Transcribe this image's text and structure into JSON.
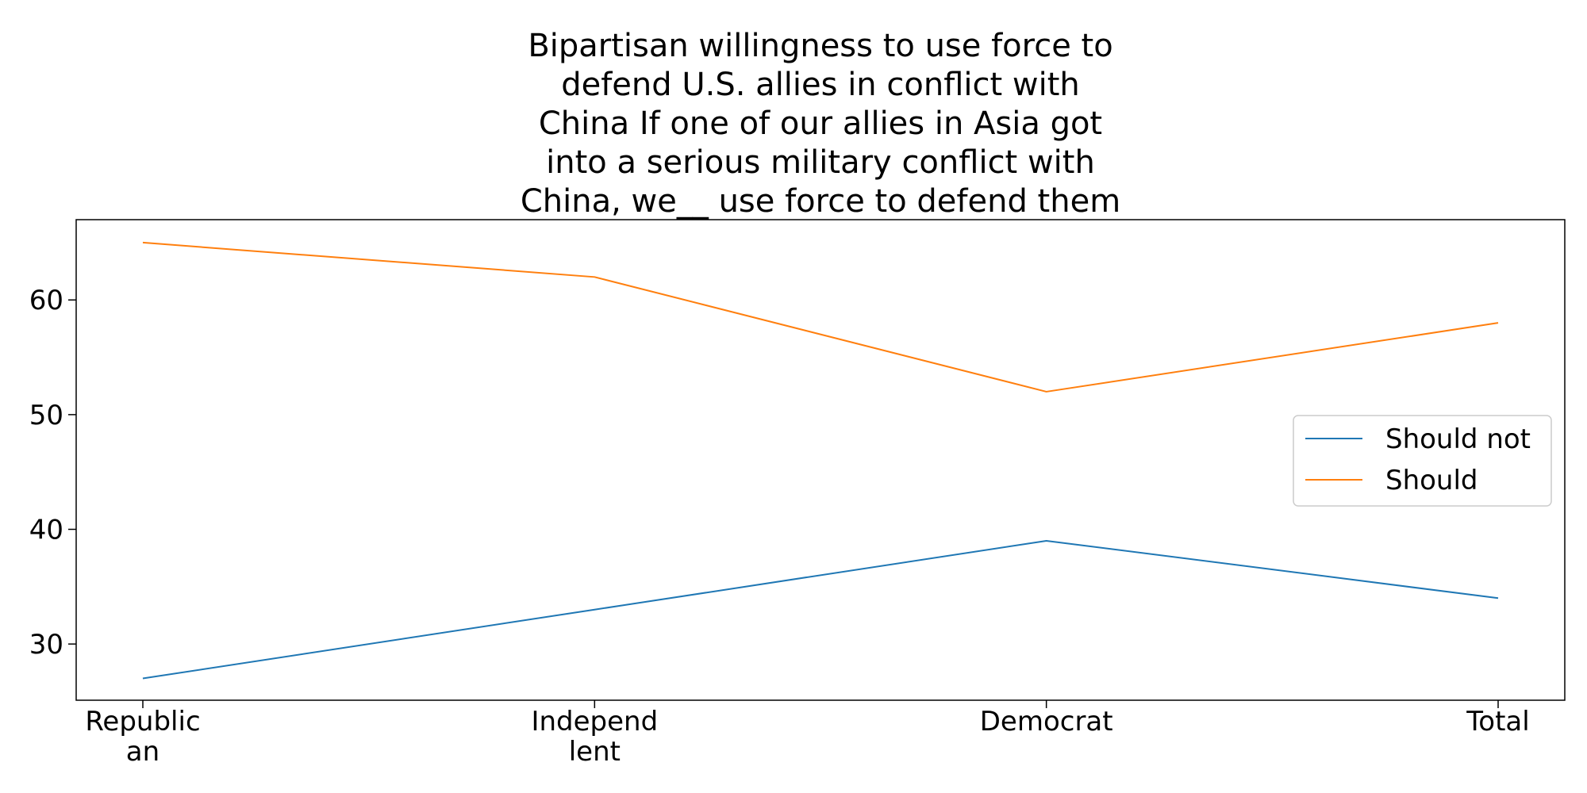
{
  "chart_data": {
    "type": "line",
    "title_lines": [
      "Bipartisan willingness to use force to",
      "defend U.S. allies in conflict with",
      "China If one of our allies in Asia got",
      "into a serious military conflict with",
      "China, we__ use force to defend them"
    ],
    "xlabel": "",
    "ylabel": "",
    "categories": [
      [
        "Republic",
        "an"
      ],
      [
        "Independ",
        "lent"
      ],
      [
        "Democrat"
      ],
      [
        "Total"
      ]
    ],
    "series": [
      {
        "name": "Should not",
        "values": [
          27,
          33,
          39,
          34
        ],
        "color": "#1f77b4"
      },
      {
        "name": "Should",
        "values": [
          65,
          62,
          52,
          58
        ],
        "color": "#ff7f0e"
      }
    ],
    "ylim": [
      25.1,
      67.0
    ],
    "yticks": [
      30,
      40,
      50,
      60
    ],
    "grid": false,
    "legend_position": "center-right"
  }
}
